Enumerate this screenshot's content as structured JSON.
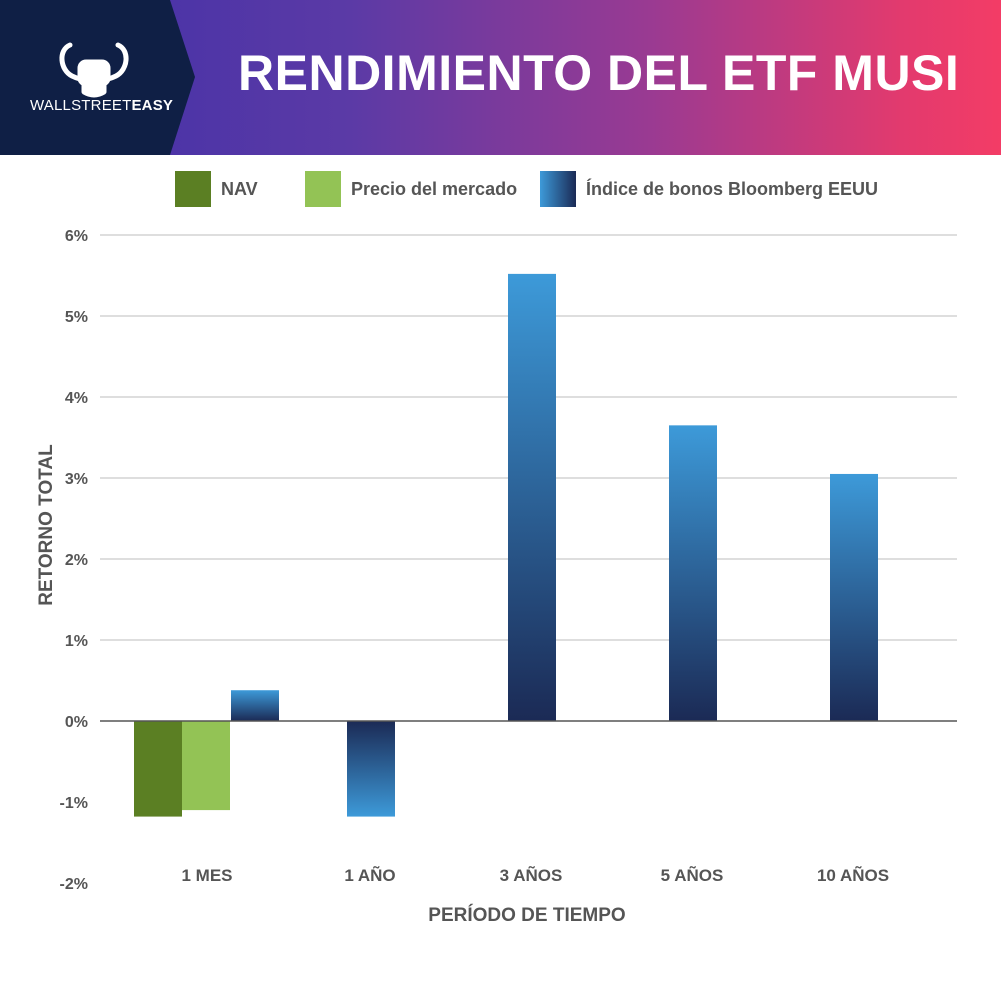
{
  "header": {
    "title": "RENDIMIENTO DEL ETF MUSI",
    "logo_text_regular": "WALLSTREET",
    "logo_text_bold": "EASY",
    "logo_icon": "bull-fist-icon"
  },
  "colors": {
    "nav": "#5b7f23",
    "market": "#93c355",
    "index_top": "#3d9ad9",
    "index_bottom": "#1b2a55",
    "logo_bg": "#0f1f45"
  },
  "chart_data": {
    "type": "bar",
    "title": "",
    "xlabel": "PERÍODO DE TIEMPO",
    "ylabel": "RETORNO TOTAL",
    "categories": [
      "1 MES",
      "1 AÑO",
      "3 AÑOS",
      "5 AÑOS",
      "10 AÑOS"
    ],
    "ylim": [
      -2,
      6
    ],
    "yticks": [
      -2,
      -1,
      0,
      1,
      2,
      3,
      4,
      5,
      6
    ],
    "ytick_labels": [
      "-2%",
      "-1%",
      "0%",
      "1%",
      "2%",
      "3%",
      "4%",
      "5%",
      "6%"
    ],
    "grid": true,
    "legend_position": "top",
    "series": [
      {
        "name": "NAV",
        "values": [
          -1.18,
          null,
          null,
          null,
          null
        ]
      },
      {
        "name": "Precio del mercado",
        "values": [
          -1.1,
          null,
          null,
          null,
          null
        ]
      },
      {
        "name": "Índice de bonos Bloomberg EEUU",
        "values": [
          0.38,
          -1.18,
          5.52,
          3.65,
          3.05
        ]
      }
    ]
  }
}
